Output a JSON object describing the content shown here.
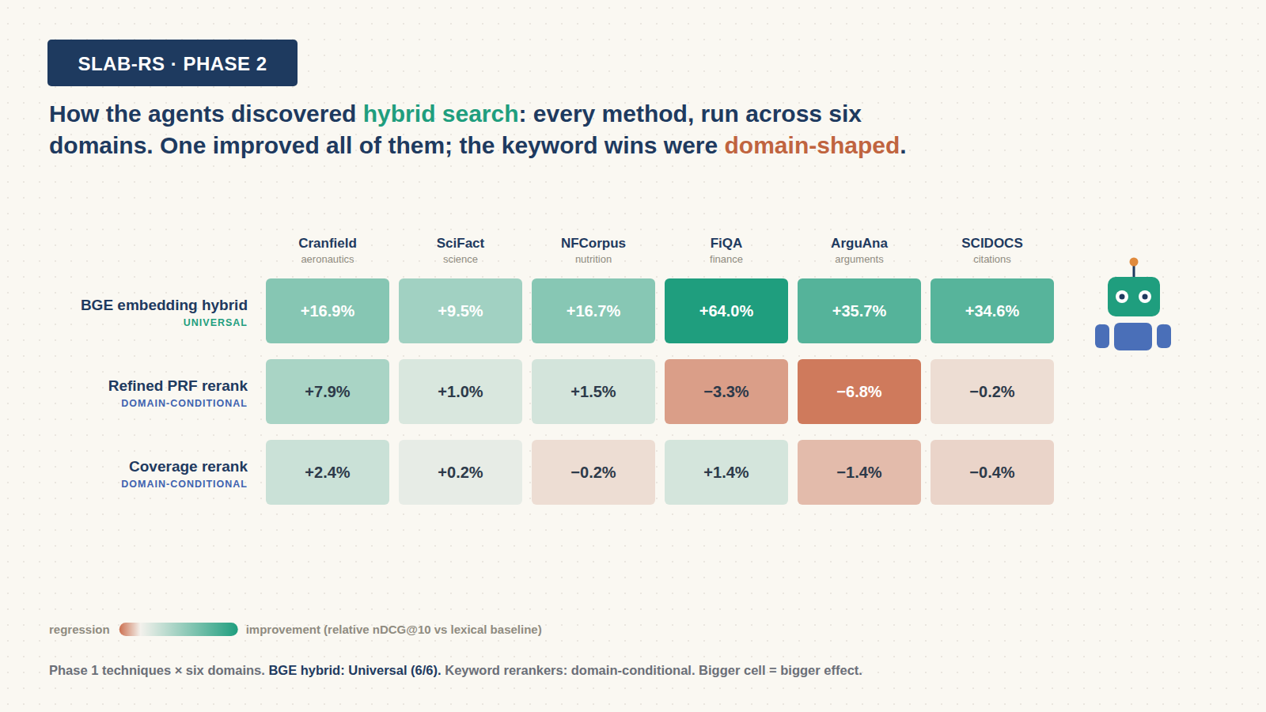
{
  "chart_data": {
    "type": "heatmap",
    "badge": "SLAB-RS · PHASE 2",
    "title": "How the agents discovered hybrid search: every method, run across six domains. One improved all of them; the keyword wins were domain-shaped.",
    "title_highlights": [
      "hybrid search",
      "domain-shaped"
    ],
    "x_categories": [
      "Cranfield",
      "SciFact",
      "NFCorpus",
      "FiQA",
      "ArguAna",
      "SCIDOCS"
    ],
    "x_subtitles": [
      "aeronautics",
      "science",
      "nutrition",
      "finance",
      "arguments",
      "citations"
    ],
    "y_categories": [
      "BGE embedding hybrid",
      "Refined PRF rerank",
      "Coverage rerank"
    ],
    "y_tags": [
      "UNIVERSAL",
      "DOMAIN-CONDITIONAL",
      "DOMAIN-CONDITIONAL"
    ],
    "values": [
      [
        16.9,
        9.5,
        16.7,
        64.0,
        35.7,
        34.6
      ],
      [
        7.9,
        1.0,
        1.5,
        -3.3,
        -6.8,
        -0.2
      ],
      [
        2.4,
        0.2,
        -0.2,
        1.4,
        -1.4,
        -0.4
      ]
    ],
    "value_labels": [
      [
        "+16.9%",
        "+9.5%",
        "+16.7%",
        "+64.0%",
        "+35.7%",
        "+34.6%"
      ],
      [
        "+7.9%",
        "+1.0%",
        "+1.5%",
        "−3.3%",
        "−6.8%",
        "−0.2%"
      ],
      [
        "+2.4%",
        "+0.2%",
        "−0.2%",
        "+1.4%",
        "−1.4%",
        "−0.4%"
      ]
    ],
    "data_labels": true,
    "color_range": [
      -8,
      64
    ],
    "colors": [
      "#cc7050",
      "#f3f1ec",
      "#1f9e7e"
    ],
    "colorbar_low_label": "regression",
    "colorbar_high_label": "improvement (relative nDCG@10 vs lexical baseline)",
    "footnote": "Phase 1 techniques × six domains. BGE hybrid: Universal (6/6). Keyword rerankers: domain-conditional. Bigger cell = bigger effect.",
    "footnote_bold": "BGE hybrid: Universal (6/6)."
  }
}
